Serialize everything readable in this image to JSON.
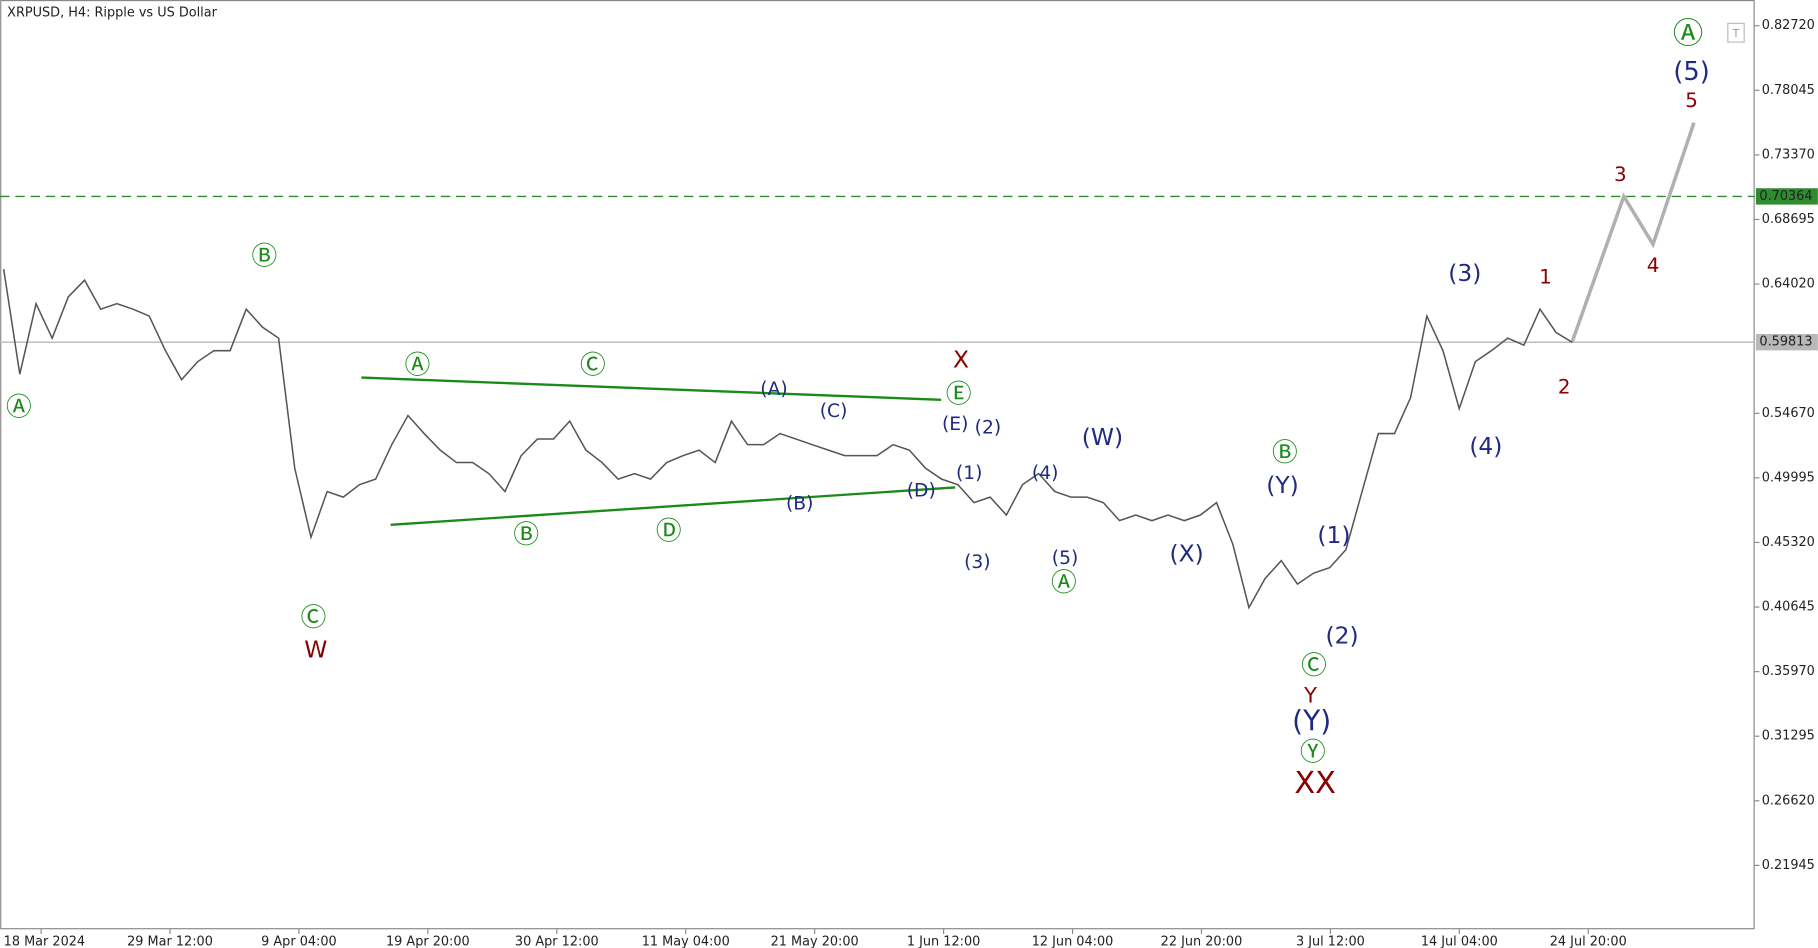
{
  "chart_data": {
    "type": "line",
    "title": "XRPUSD, H4:  Ripple vs US Dollar",
    "series": [
      {
        "name": "XRPUSD",
        "color": "#555555",
        "values": [
          0.651,
          0.575,
          0.626,
          0.601,
          0.631,
          0.643,
          0.622,
          0.626,
          0.622,
          0.617,
          0.592,
          0.571,
          0.584,
          0.592,
          0.592,
          0.622,
          0.609,
          0.601,
          0.507,
          0.457,
          0.49,
          0.486,
          0.495,
          0.499,
          0.524,
          0.545,
          0.532,
          0.52,
          0.511,
          0.511,
          0.503,
          0.49,
          0.516,
          0.528,
          0.528,
          0.541,
          0.52,
          0.511,
          0.499,
          0.503,
          0.499,
          0.511,
          0.516,
          0.52,
          0.511,
          0.541,
          0.524,
          0.524,
          0.532,
          0.528,
          0.524,
          0.52,
          0.516,
          0.516,
          0.516,
          0.524,
          0.52,
          0.507,
          0.499,
          0.495,
          0.482,
          0.486,
          0.473,
          0.495,
          0.503,
          0.49,
          0.486,
          0.486,
          0.482,
          0.469,
          0.473,
          0.469,
          0.473,
          0.469,
          0.473,
          0.482,
          0.452,
          0.406,
          0.427,
          0.44,
          0.423,
          0.431,
          0.435,
          0.448,
          0.49,
          0.532,
          0.532,
          0.558,
          0.617,
          0.592,
          0.55,
          0.584,
          0.592,
          0.601,
          0.596,
          0.622,
          0.605,
          0.598
        ]
      }
    ],
    "xticks": [
      "18 Mar 2024",
      "29 Mar 12:00",
      "9 Apr 04:00",
      "19 Apr 20:00",
      "30 Apr 12:00",
      "11 May 04:00",
      "21 May 20:00",
      "1 Jun 12:00",
      "12 Jun 04:00",
      "22 Jun 20:00",
      "3 Jul 12:00",
      "14 Jul 04:00",
      "24 Jul 20:00"
    ],
    "ylim": [
      0.1732,
      0.8458
    ],
    "yticks": [
      {
        "value": 0.8272,
        "label": "0.82720"
      },
      {
        "value": 0.78045,
        "label": "0.78045"
      },
      {
        "value": 0.7337,
        "label": "0.73370"
      },
      {
        "value": 0.68695,
        "label": "0.68695"
      },
      {
        "value": 0.6402,
        "label": "0.64020"
      },
      {
        "value": 0.5467,
        "label": "0.54670"
      },
      {
        "value": 0.49995,
        "label": "0.49995"
      },
      {
        "value": 0.4532,
        "label": "0.45320"
      },
      {
        "value": 0.40645,
        "label": "0.40645"
      },
      {
        "value": 0.3597,
        "label": "0.35970"
      },
      {
        "value": 0.31295,
        "label": "0.31295"
      },
      {
        "value": 0.2662,
        "label": "0.26620"
      },
      {
        "value": 0.21945,
        "label": "0.21945"
      }
    ],
    "hlines": [
      {
        "value": 0.70364,
        "label": "0.70364",
        "color": "#2e8b2e"
      },
      {
        "value": 0.59813,
        "label": "0.59813",
        "color": "#b8b8b8"
      }
    ],
    "annotations": [
      {
        "text": "Ⓐ",
        "color": "#1a8a1a"
      },
      {
        "text": "Ⓑ",
        "color": "#1a8a1a"
      },
      {
        "text": "Ⓒ",
        "color": "#1a8a1a"
      },
      {
        "text": "W",
        "color": "#8b0000"
      },
      {
        "text": "Ⓐ",
        "color": "#1a8a1a"
      },
      {
        "text": "Ⓒ",
        "color": "#1a8a1a"
      },
      {
        "text": "(A)",
        "color": "#1f2a80"
      },
      {
        "text": "X",
        "color": "#8b0000"
      },
      {
        "text": "Ⓔ",
        "color": "#1a8a1a"
      },
      {
        "text": "Ⓑ",
        "color": "#1a8a1a"
      },
      {
        "text": "Ⓓ",
        "color": "#1a8a1a"
      },
      {
        "text": "(B)",
        "color": "#1f2a80"
      },
      {
        "text": "(C)",
        "color": "#1f2a80"
      },
      {
        "text": "(E)",
        "color": "#1f2a80"
      },
      {
        "text": "(2)",
        "color": "#1f2a80"
      },
      {
        "text": "(D)",
        "color": "#1f2a80"
      },
      {
        "text": "(1)",
        "color": "#1f2a80"
      },
      {
        "text": "(3)",
        "color": "#1f2a80"
      },
      {
        "text": "(4)",
        "color": "#1f2a80"
      },
      {
        "text": "(5)",
        "color": "#1f2a80"
      },
      {
        "text": "Ⓐ",
        "color": "#1a8a1a"
      },
      {
        "text": "(W)",
        "color": "#1f2a80"
      },
      {
        "text": "(X)",
        "color": "#1f2a80"
      },
      {
        "text": "Ⓑ",
        "color": "#1a8a1a"
      },
      {
        "text": "(Y)",
        "color": "#1f2a80"
      },
      {
        "text": "(1)",
        "color": "#1f2a80"
      },
      {
        "text": "(2)",
        "color": "#1f2a80"
      },
      {
        "text": "Ⓒ",
        "color": "#1a8a1a"
      },
      {
        "text": "Y",
        "color": "#8b0000"
      },
      {
        "text": "(Y)",
        "color": "#1f2a80"
      },
      {
        "text": "Ⓨ",
        "color": "#1a8a1a"
      },
      {
        "text": "XX",
        "color": "#8b0000"
      },
      {
        "text": "(3)",
        "color": "#1f2a80"
      },
      {
        "text": "(4)",
        "color": "#1f2a80"
      },
      {
        "text": "1",
        "color": "#8b0000"
      },
      {
        "text": "2",
        "color": "#8b0000"
      },
      {
        "text": "3",
        "color": "#8b0000"
      },
      {
        "text": "4",
        "color": "#8b0000"
      },
      {
        "text": "5",
        "color": "#8b0000"
      },
      {
        "text": "(5)",
        "color": "#1f2a80"
      },
      {
        "text": "Ⓐ",
        "color": "#1a8a1a"
      }
    ]
  }
}
